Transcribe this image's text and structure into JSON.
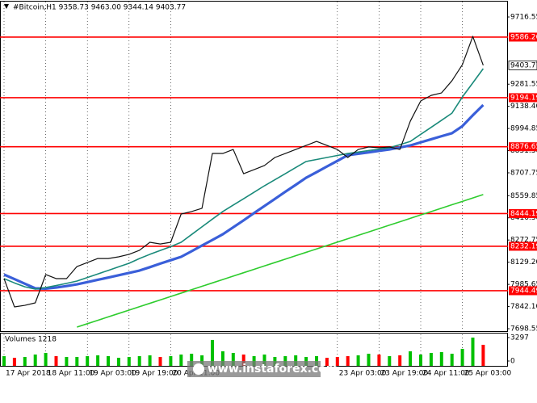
{
  "chart_data": {
    "type": "line",
    "title": "#Bitcoin,H1  9358.73 9463.00 9344.14 9403.77",
    "watermark": "www.instaforex.com",
    "categories": [
      "17 Apr 2018",
      null,
      null,
      null,
      "18 Apr 11:00",
      null,
      null,
      null,
      "19 Apr 03:00",
      null,
      null,
      null,
      "19 Apr 19:00",
      null,
      null,
      null,
      "20 Apr 11:00",
      null,
      null,
      null,
      null,
      null,
      null,
      null,
      null,
      null,
      null,
      null,
      null,
      null,
      null,
      null,
      "23 Apr 03:00",
      null,
      null,
      null,
      "23 Apr 19:00",
      null,
      null,
      null,
      "24 Apr 11:00",
      null,
      null,
      null,
      "25 Apr 03:00",
      null,
      null
    ],
    "ylim": [
      7683,
      9816
    ],
    "yticks": [
      {
        "value": 9716.55,
        "label": "9716.55"
      },
      {
        "value": 9281.55,
        "label": "9281.55"
      },
      {
        "value": 9138.4,
        "label": "9138.40"
      },
      {
        "value": 8994.85,
        "label": "8994.85"
      },
      {
        "value": 8851.3,
        "label": "8851.30"
      },
      {
        "value": 8707.75,
        "label": "8707.75"
      },
      {
        "value": 8559.85,
        "label": "8559.85"
      },
      {
        "value": 8416.3,
        "label": "8416.30"
      },
      {
        "value": 8272.75,
        "label": "8272.75"
      },
      {
        "value": 8129.2,
        "label": "8129.20"
      },
      {
        "value": 7985.65,
        "label": "7985.65"
      },
      {
        "value": 7842.1,
        "label": "7842.10"
      },
      {
        "value": 7698.55,
        "label": "7698.55"
      }
    ],
    "series": [
      {
        "color": "#2ecc2e",
        "values": [
          null,
          null,
          null,
          null,
          null,
          null,
          null,
          7709,
          7731,
          7753,
          7775,
          7797,
          7819,
          7841,
          7863,
          7885,
          7907,
          7929,
          7951,
          7973,
          7995,
          8017,
          8039,
          8061,
          8083,
          8105,
          8127,
          8149,
          8171,
          8193,
          8215,
          8237,
          8259,
          8281,
          8303,
          8325,
          8347,
          8369,
          8391,
          8413,
          8435,
          8457,
          8479,
          8501,
          8523,
          8545,
          8567
        ]
      },
      {
        "color": "#3a5fd9",
        "values": [
          8049,
          8020,
          7990,
          7960,
          7958,
          7965,
          7975,
          7986,
          8000,
          8015,
          8030,
          8045,
          8060,
          8075,
          8097,
          8120,
          8142,
          8164,
          8200,
          8237,
          8273,
          8310,
          8355,
          8400,
          8447,
          8493,
          8539,
          8585,
          8630,
          8676,
          8712,
          8749,
          8785,
          8822,
          8831,
          8840,
          8850,
          8859,
          8872,
          8885,
          8905,
          8925,
          8945,
          8964,
          9010,
          9080,
          9147
        ]
      },
      {
        "color": "#1a8a7a",
        "values": [
          8023,
          7995,
          7970,
          7955,
          7965,
          7978,
          7992,
          8007,
          8030,
          8053,
          8076,
          8099,
          8122,
          8153,
          8180,
          8205,
          8230,
          8258,
          8308,
          8358,
          8408,
          8457,
          8499,
          8540,
          8582,
          8624,
          8663,
          8702,
          8742,
          8781,
          8794,
          8807,
          8820,
          8833,
          8842,
          8852,
          8861,
          8870,
          8890,
          8911,
          8957,
          9002,
          9048,
          9094,
          9199,
          9290,
          9382
        ]
      },
      {
        "color": "#111111",
        "values": [
          8023,
          7840,
          7850,
          7866,
          8049,
          8023,
          8023,
          8101,
          8127,
          8153,
          8153,
          8164,
          8180,
          8206,
          8258,
          8247,
          8258,
          8441,
          8457,
          8478,
          8833,
          8833,
          8859,
          8702,
          8728,
          8755,
          8807,
          8833,
          8859,
          8885,
          8911,
          8885,
          8859,
          8807,
          8859,
          8875,
          8870,
          8875,
          8859,
          9042,
          9173,
          9209,
          9225,
          9304,
          9408,
          9591,
          9403.77
        ]
      }
    ],
    "levels": {
      "color": "#ff0000",
      "values": [
        9586.26,
        9194.19,
        8876.65,
        8444.19,
        8232.19,
        7944.49
      ]
    },
    "volume": {
      "label": "Volumes 1218",
      "up_color": "#00c000",
      "down_color": "#ff0000",
      "ylim": [
        0,
        3297
      ],
      "yticks": [
        0,
        3297
      ],
      "values": [
        684,
        456,
        570,
        912,
        1140,
        684,
        570,
        570,
        684,
        798,
        684,
        456,
        570,
        684,
        798,
        570,
        684,
        912,
        1026,
        798,
        2964,
        1368,
        1140,
        912,
        684,
        912,
        570,
        684,
        798,
        570,
        684,
        456,
        570,
        684,
        798,
        1026,
        912,
        684,
        798,
        1368,
        912,
        1140,
        1254,
        1026,
        1710,
        3297,
        2280
      ]
    }
  }
}
